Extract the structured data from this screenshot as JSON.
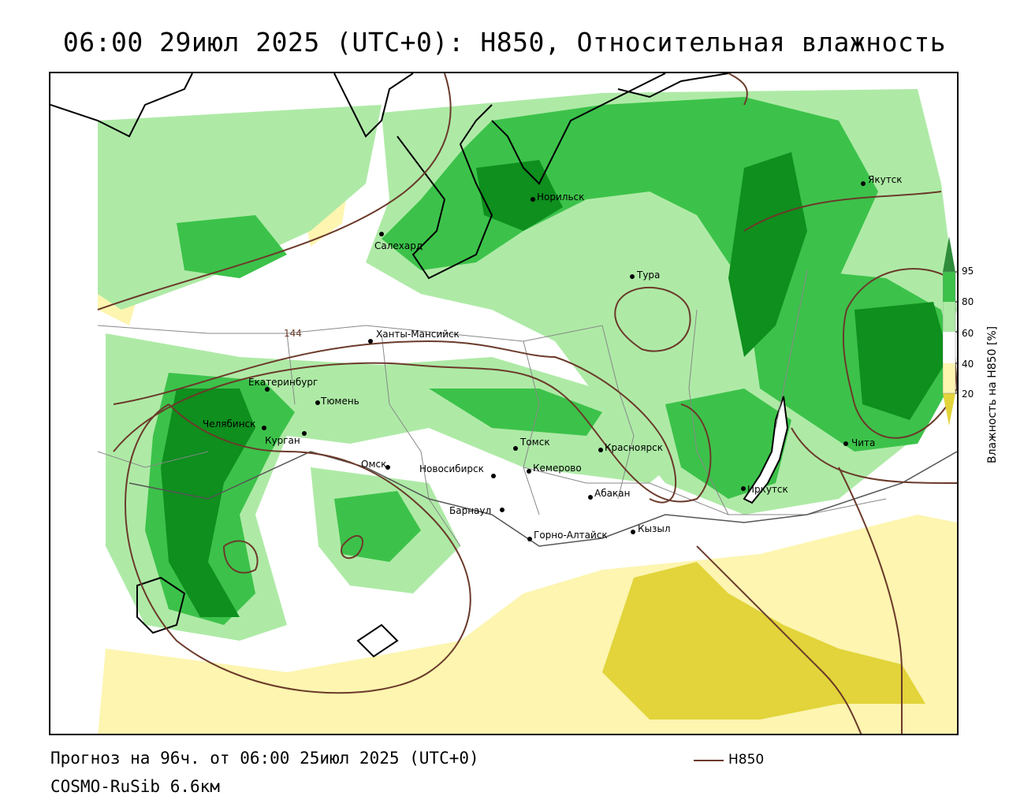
{
  "title": "06:00 29июл 2025 (UTC+0): H850, Относительная влажность",
  "footer": {
    "forecast": "Прогноз на 96ч. от 06:00 25июл 2025 (UTC+0)",
    "model": "COSMO-RuSib 6.6км",
    "legend_line_label": "H850"
  },
  "colorbar": {
    "title": "Влажность на H850 [%]",
    "ticks": [
      "95",
      "80",
      "60",
      "40",
      "20"
    ]
  },
  "contour_label": "144",
  "colors": {
    "green_dark": "#0e8f1e",
    "green": "#3cc24a",
    "green_light": "#aeeaa6",
    "yellow_light": "#fdf5b0",
    "yellow": "#e2d43a",
    "contour": "#6b3a2a"
  },
  "cities": [
    {
      "name": "Якутск"
    },
    {
      "name": "Норильск"
    },
    {
      "name": "Салехард"
    },
    {
      "name": "Тура"
    },
    {
      "name": "Ханты-Мансийск"
    },
    {
      "name": "Екатеринбург"
    },
    {
      "name": "Тюмень"
    },
    {
      "name": "Челябинск"
    },
    {
      "name": "Курган"
    },
    {
      "name": "Омск"
    },
    {
      "name": "Новосибирск"
    },
    {
      "name": "Томск"
    },
    {
      "name": "Кемерово"
    },
    {
      "name": "Красноярск"
    },
    {
      "name": "Абакан"
    },
    {
      "name": "Барнаул"
    },
    {
      "name": "Горно-Алтайск"
    },
    {
      "name": "Кызыл"
    },
    {
      "name": "Иркутск"
    },
    {
      "name": "Чита"
    }
  ]
}
